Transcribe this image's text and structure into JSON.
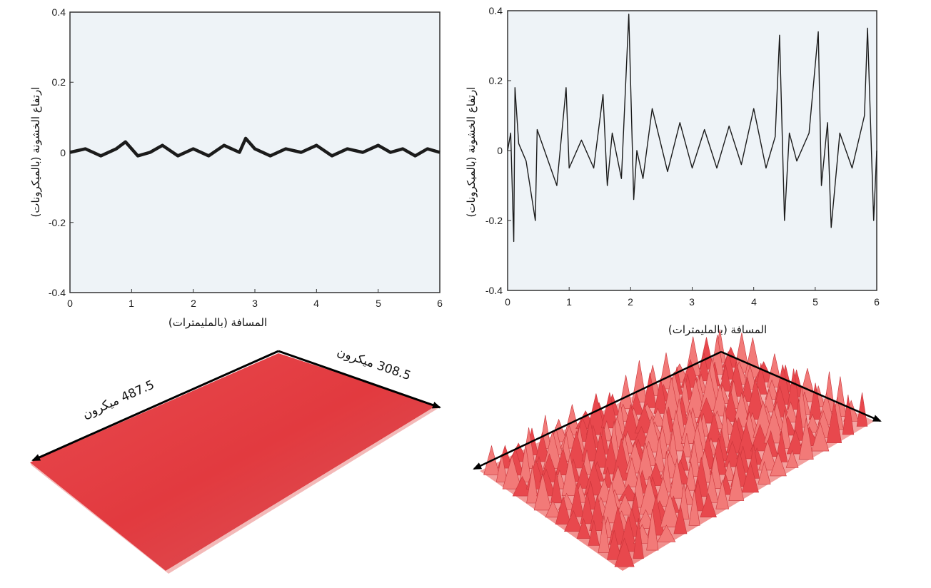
{
  "chart_data": [
    {
      "type": "line",
      "name": "smooth-surface-profile",
      "xlabel": "المسافة (بالمليمترات)",
      "ylabel": "ارتفاع الخشونة (بالميكرونات)",
      "xlim": [
        0,
        6
      ],
      "ylim": [
        -0.4,
        0.4
      ],
      "xticks": [
        "0",
        "1",
        "2",
        "3",
        "4",
        "5",
        "6"
      ],
      "yticks": [
        "0.4",
        "0.2",
        "0",
        "-0.2",
        "-0.4"
      ],
      "grid": false,
      "series": [
        {
          "x": [
            0,
            0.25,
            0.5,
            0.75,
            0.9,
            1.1,
            1.3,
            1.5,
            1.75,
            2.0,
            2.25,
            2.5,
            2.75,
            2.85,
            3.0,
            3.25,
            3.5,
            3.75,
            4.0,
            4.25,
            4.5,
            4.75,
            5.0,
            5.2,
            5.4,
            5.6,
            5.8,
            6.0
          ],
          "y": [
            0.0,
            0.01,
            -0.01,
            0.01,
            0.03,
            -0.01,
            0.0,
            0.02,
            -0.01,
            0.01,
            -0.01,
            0.02,
            0.0,
            0.04,
            0.01,
            -0.01,
            0.01,
            0.0,
            0.02,
            -0.01,
            0.01,
            0.0,
            0.02,
            0.0,
            0.01,
            -0.01,
            0.01,
            0.0
          ]
        }
      ]
    },
    {
      "type": "line",
      "name": "rough-surface-profile",
      "xlabel": "المسافة (بالمليمترات)",
      "ylabel": "ارتفاع الخشونة (بالميكرونات)",
      "xlim": [
        0,
        6
      ],
      "ylim": [
        -0.4,
        0.4
      ],
      "xticks": [
        "0",
        "1",
        "2",
        "3",
        "4",
        "5",
        "6"
      ],
      "yticks": [
        "0.4",
        "0.2",
        "0",
        "-0.2",
        "-0.4"
      ],
      "grid": false,
      "series": [
        {
          "x": [
            0,
            0.05,
            0.1,
            0.12,
            0.18,
            0.3,
            0.45,
            0.48,
            0.6,
            0.8,
            0.95,
            1.0,
            1.2,
            1.4,
            1.55,
            1.62,
            1.7,
            1.85,
            1.97,
            2.05,
            2.1,
            2.2,
            2.35,
            2.6,
            2.8,
            3.0,
            3.2,
            3.4,
            3.6,
            3.8,
            4.0,
            4.2,
            4.35,
            4.42,
            4.5,
            4.58,
            4.7,
            4.9,
            5.05,
            5.1,
            5.2,
            5.26,
            5.4,
            5.6,
            5.8,
            5.85,
            5.95,
            6.0
          ],
          "y": [
            0.0,
            0.05,
            -0.26,
            0.18,
            0.02,
            -0.03,
            -0.2,
            0.06,
            0.0,
            -0.1,
            0.18,
            -0.05,
            0.03,
            -0.05,
            0.16,
            -0.1,
            0.05,
            -0.08,
            0.39,
            -0.14,
            0.0,
            -0.08,
            0.12,
            -0.06,
            0.08,
            -0.05,
            0.06,
            -0.05,
            0.07,
            -0.04,
            0.12,
            -0.05,
            0.04,
            0.33,
            -0.2,
            0.05,
            -0.03,
            0.05,
            0.34,
            -0.1,
            0.08,
            -0.22,
            0.05,
            -0.05,
            0.1,
            0.35,
            -0.2,
            0.0
          ]
        }
      ]
    }
  ],
  "surfaces": {
    "smooth": {
      "color": "#e23a3f",
      "length_label": "487.5 ميكرون",
      "width_label": "308.5 ميكرون"
    },
    "rough": {
      "color": "#e8484d"
    }
  }
}
